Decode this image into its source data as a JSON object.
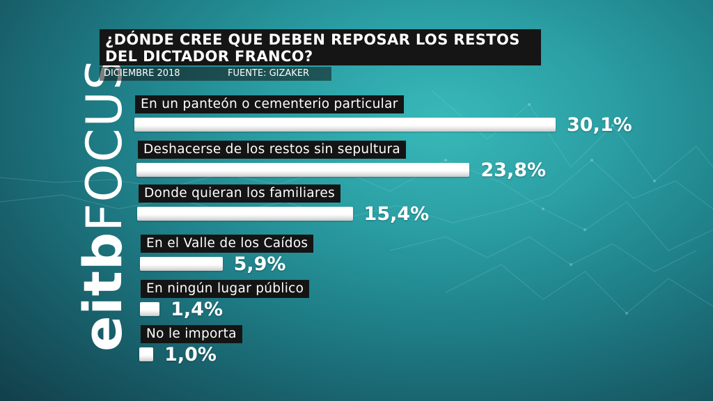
{
  "brand": {
    "logo_part1": "eitb",
    "logo_part2": "FOCUS"
  },
  "colors": {
    "background": "#2a9ea3",
    "label_box": "#141414",
    "bar": "#ffffff",
    "text": "#ffffff"
  },
  "header": {
    "title_line1": "¿DÓNDE CREE QUE DEBEN REPOSAR LOS RESTOS",
    "title_line2": "DEL DICTADOR FRANCO?",
    "date": "DICIEMBRE 2018",
    "source": "FUENTE: GIZAKER"
  },
  "chart_data": {
    "type": "bar",
    "orientation": "horizontal",
    "title": "¿DÓNDE CREE QUE DEBEN REPOSAR LOS RESTOS DEL DICTADOR FRANCO?",
    "categories": [
      "En un panteón o cementerio particular",
      "Deshacerse de los restos sin sepultura",
      "Donde quieran los familiares",
      "En el Valle de los Caídos",
      "En ningún lugar público",
      "No le importa"
    ],
    "values": [
      30.1,
      23.8,
      15.4,
      5.9,
      1.4,
      1.0
    ],
    "value_labels": [
      "30,1%",
      "23,8%",
      "15,4%",
      "5,9%",
      "1,4%",
      "1,0%"
    ],
    "unit": "%",
    "grid": false,
    "legend": "none"
  }
}
